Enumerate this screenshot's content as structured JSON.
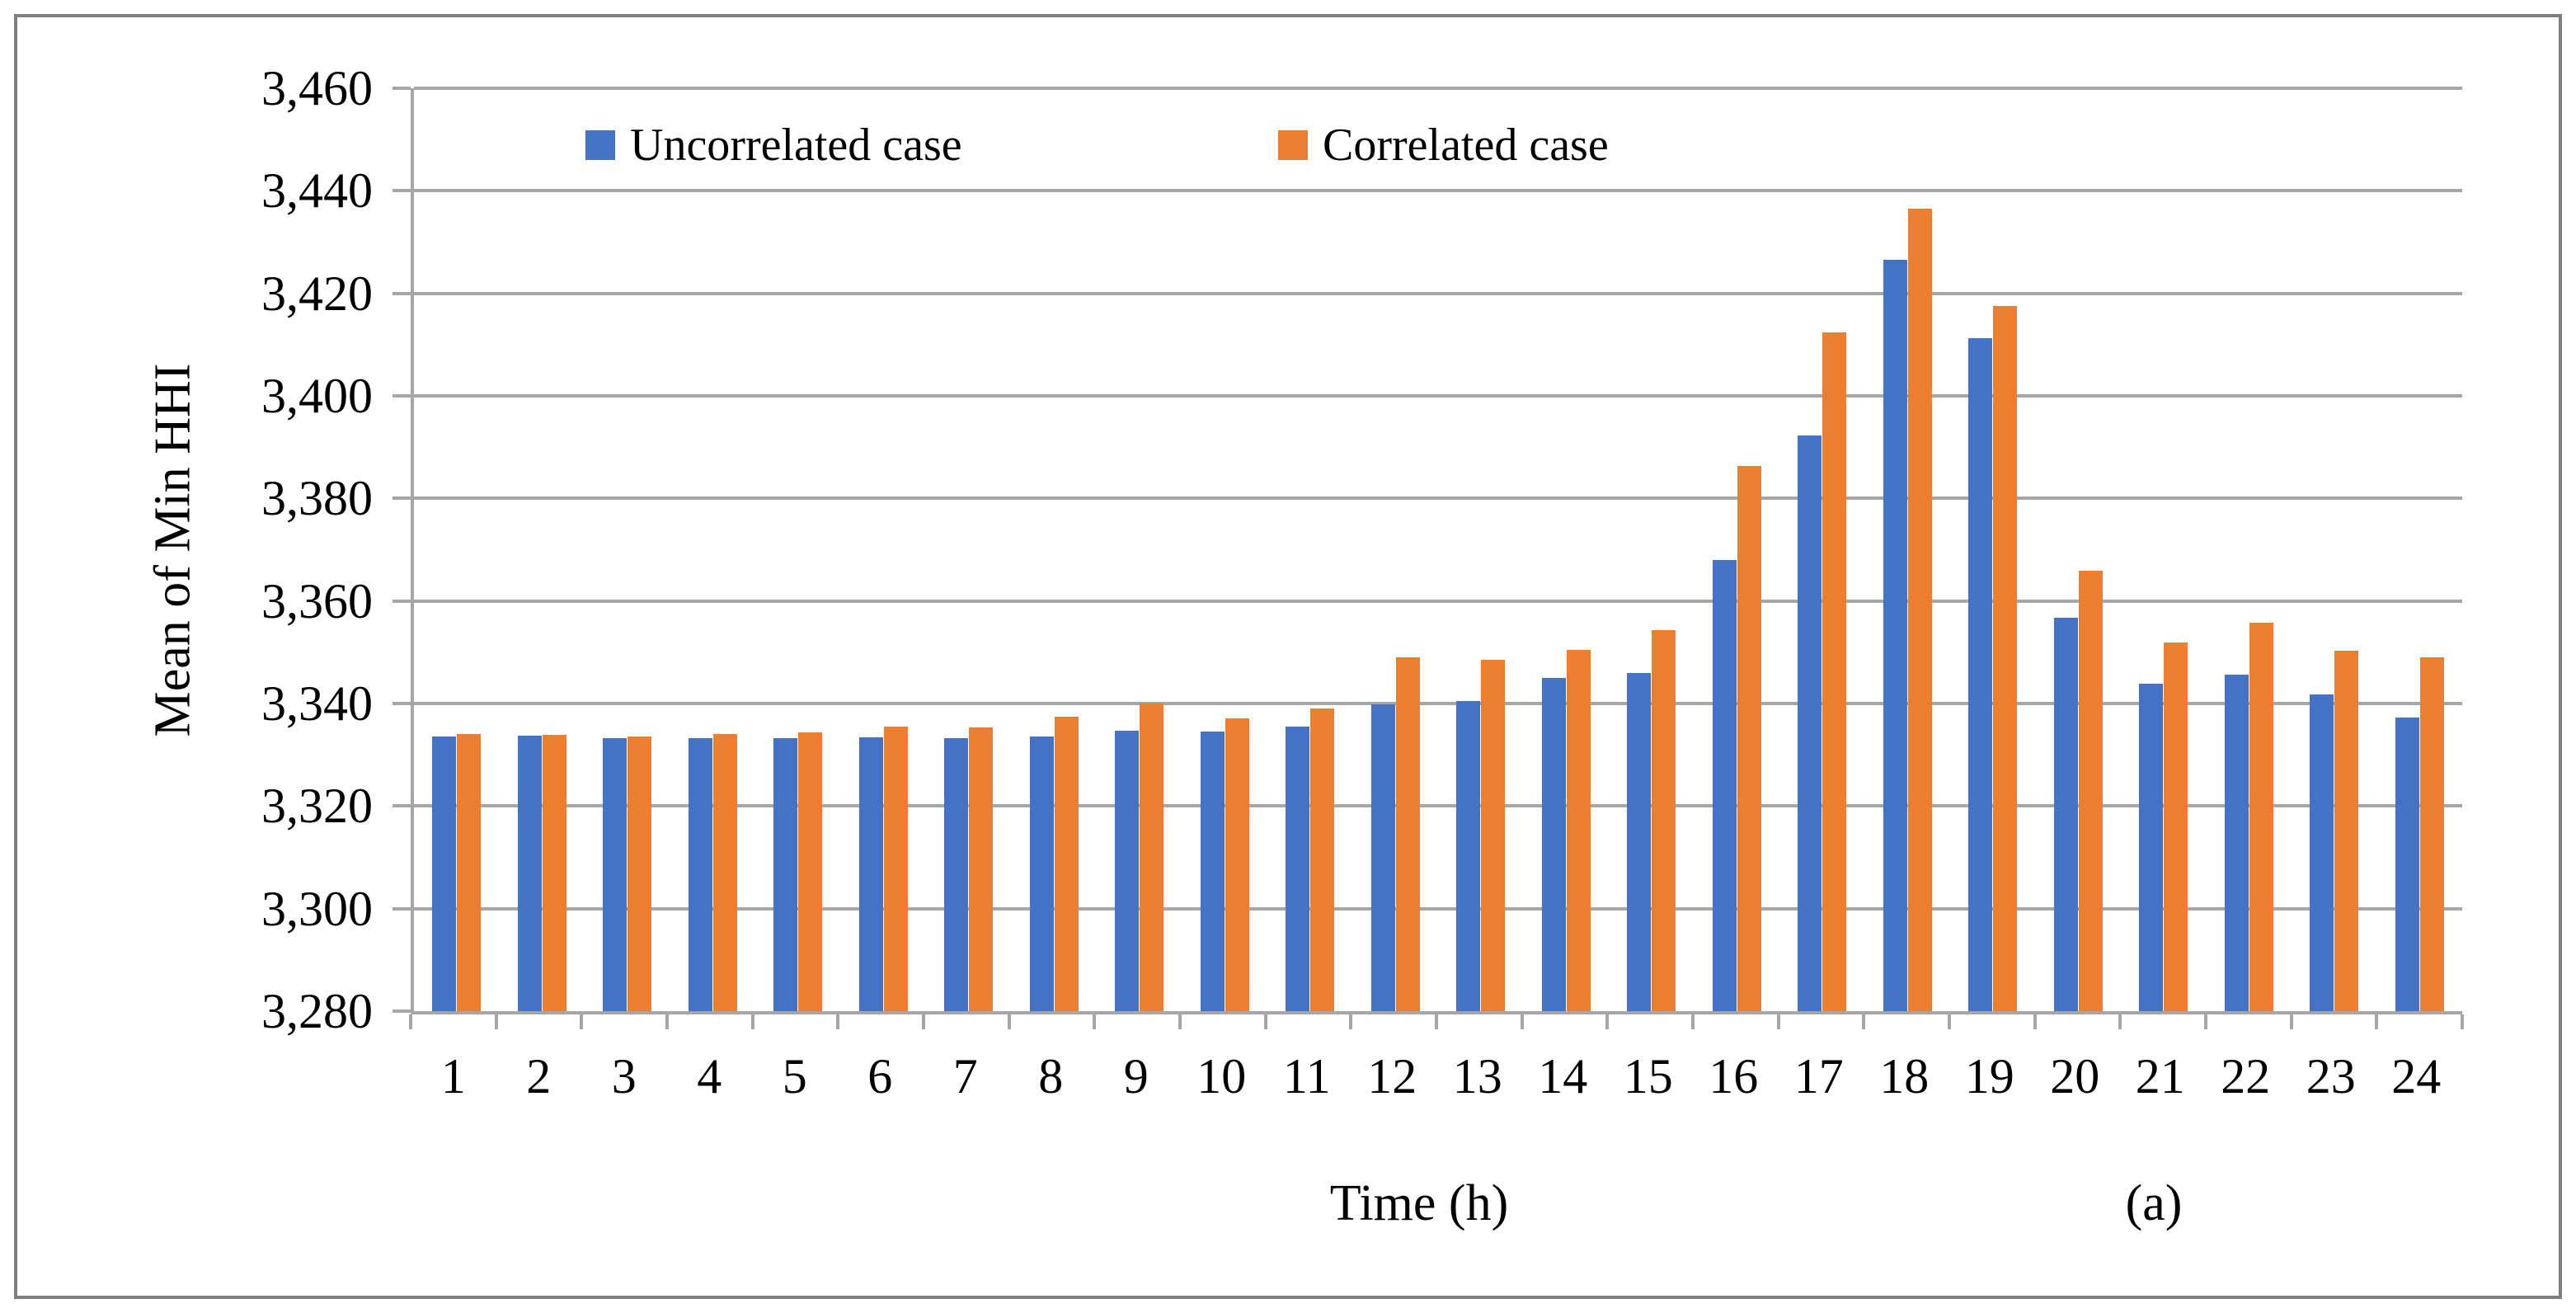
{
  "chart_data": {
    "type": "bar",
    "title": "",
    "xlabel": "Time (h)",
    "ylabel": "Mean of Min HHI",
    "annotation": "(a)",
    "categories": [
      "1",
      "2",
      "3",
      "4",
      "5",
      "6",
      "7",
      "8",
      "9",
      "10",
      "11",
      "12",
      "13",
      "14",
      "15",
      "16",
      "17",
      "18",
      "19",
      "20",
      "21",
      "22",
      "23",
      "24"
    ],
    "series": [
      {
        "name": "Uncorrelated case",
        "color": "#4472C4",
        "values": [
          3333.6,
          3333.7,
          3333.3,
          3333.3,
          3333.2,
          3333.4,
          3333.3,
          3333.5,
          3334.7,
          3334.5,
          3335.5,
          3339.8,
          3340.5,
          3345.0,
          3346.0,
          3368.0,
          3392.3,
          3426.5,
          3411.2,
          3356.8,
          3343.9,
          3345.6,
          3341.8,
          3337.2
        ]
      },
      {
        "name": "Correlated case",
        "color": "#ED7D31",
        "values": [
          3334.0,
          3333.9,
          3333.5,
          3334.0,
          3334.3,
          3335.5,
          3335.3,
          3337.5,
          3340.0,
          3337.1,
          3339.0,
          3349.0,
          3348.5,
          3350.5,
          3354.3,
          3386.3,
          3412.4,
          3436.5,
          3417.5,
          3365.9,
          3351.9,
          3355.7,
          3350.3,
          3349.0
        ]
      }
    ],
    "ylim": [
      3280,
      3460
    ],
    "ytick_step": 20,
    "ytick_labels": [
      "3,280",
      "3,300",
      "3,320",
      "3,340",
      "3,360",
      "3,380",
      "3,400",
      "3,420",
      "3,440",
      "3,460"
    ],
    "grid": true,
    "legend_position": "top-inside",
    "colors": {
      "gridline": "#a6a6a6",
      "axis": "#a6a6a6",
      "figure_border": "#7f7f7f",
      "text": "#000000"
    }
  }
}
